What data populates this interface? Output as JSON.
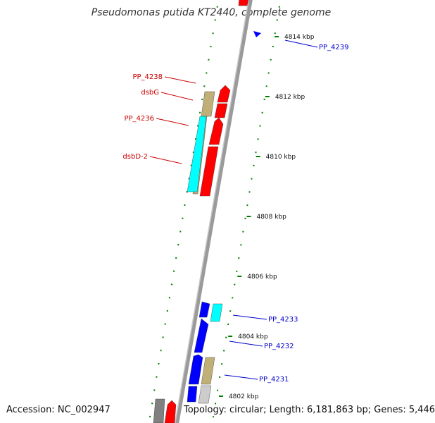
{
  "title": "Pseudomonas putida KT2440, complete genome",
  "accession": "Accession: NC_002947",
  "topology": "Topology: circular; Length: 6,181,863 bp; Genes: 5,446",
  "colors": {
    "forward": "#ff0000",
    "reverse": "#0000ff",
    "cyan": "#00ffff",
    "khaki": "#c0b078",
    "gray": "#808080",
    "tick": "#008000",
    "label_red": "#cc0000",
    "label_blue": "#0000cc"
  },
  "scale_ticks": [
    {
      "kbp": 4814,
      "label": "4814 kbp"
    },
    {
      "kbp": 4812,
      "label": "4812 kbp"
    },
    {
      "kbp": 4810,
      "label": "4810 kbp"
    },
    {
      "kbp": 4808,
      "label": "4808 kbp"
    },
    {
      "kbp": 4806,
      "label": "4806 kbp"
    },
    {
      "kbp": 4804,
      "label": "4804 kbp"
    },
    {
      "kbp": 4802,
      "label": "4802 kbp"
    }
  ],
  "gene_labels": [
    {
      "text": "PP_4239",
      "strand": "reverse"
    },
    {
      "text": "PP_4238",
      "strand": "forward"
    },
    {
      "text": "dsbG",
      "strand": "forward"
    },
    {
      "text": "PP_4236",
      "strand": "forward"
    },
    {
      "text": "dsbD-2",
      "strand": "forward"
    },
    {
      "text": "PP_4233",
      "strand": "reverse"
    },
    {
      "text": "PP_4232",
      "strand": "reverse"
    },
    {
      "text": "PP_4231",
      "strand": "reverse"
    }
  ]
}
